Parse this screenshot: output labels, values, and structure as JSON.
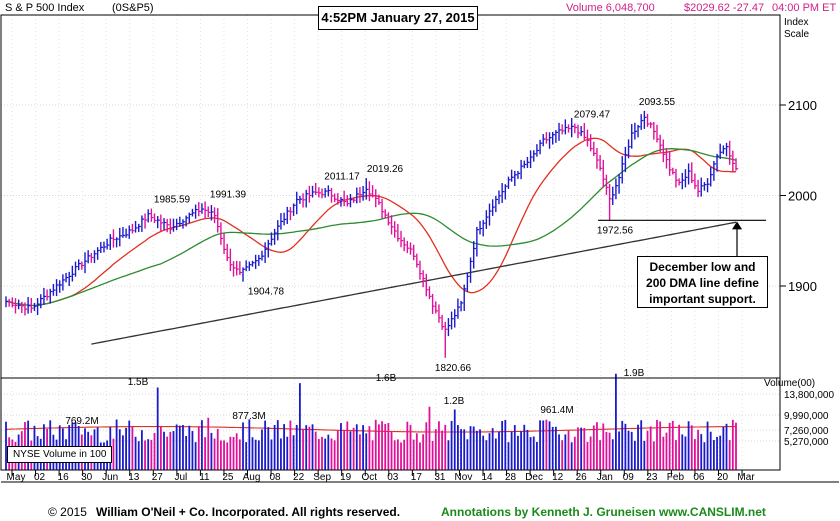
{
  "header": {
    "index_name": "S & P 500 Index",
    "symbol": "(0S&P5)",
    "timestamp": "4:52PM January 27, 2015",
    "volume": "Volume 6,048,700",
    "quote": "$2029.62 -27.47",
    "time": "04:00 PM ET",
    "scale_label_1": "Index",
    "scale_label_2": "Scale"
  },
  "callout": {
    "line1": "December low and",
    "line2": "200 DMA line define",
    "line3": "important support."
  },
  "volume_panel": {
    "legend": "NYSE Volume in 100",
    "axis_title": "Volume(00)",
    "ticks": [
      "13,800,000",
      "9,990,000",
      "7,260,000",
      "5,270,000"
    ],
    "peak_labels": [
      "769.2M",
      "1.5B",
      "877.3M",
      "1.6B",
      "1.2B",
      "961.4M",
      "1.9B"
    ]
  },
  "footer": {
    "copyright": "© 2015",
    "company": "William O'Neil + Co. Incorporated. All rights reserved.",
    "annotations": "Annotations by Kenneth J. Gruneisen www.CANSLIM.net"
  },
  "colors": {
    "up": "#1a1acc",
    "down": "#e0109a",
    "ma50": "#2e8b2e",
    "ma21": "#e03020",
    "ma200": "#333333",
    "header_pink": "#d0208a",
    "footer_green": "#1a8a1a"
  },
  "chart_data": {
    "type": "ohlc-bar",
    "title": "S & P 500 Index",
    "y_axis_ticks": [
      "2100",
      "2000",
      "1900"
    ],
    "ylim": [
      1800,
      2125
    ],
    "x_axis_ticks": [
      "May",
      "02",
      "16",
      "30",
      "Jun",
      "13",
      "27",
      "Jul",
      "11",
      "25",
      "Aug",
      "08",
      "22",
      "Sep",
      "19",
      "Oct",
      "03",
      "17",
      "31",
      "Nov",
      "14",
      "28",
      "Dec",
      "12",
      "26",
      "Jan",
      "09",
      "23",
      "Feb",
      "06",
      "20",
      "Mar"
    ],
    "price_labels": [
      "1985.59",
      "1991.39",
      "1904.78",
      "2011.17",
      "2019.26",
      "1820.66",
      "2079.47",
      "2093.55",
      "1972.56"
    ],
    "key_levels": {
      "may_start": 1883,
      "jun_high": 1985.59,
      "jul_high": 1991.39,
      "aug_low": 1904.78,
      "sep_high_1": 2011.17,
      "sep_high_2": 2019.26,
      "oct_low": 1820.66,
      "dec_high": 2079.47,
      "dec_low": 1972.56,
      "dec_late_high": 2093.55,
      "jan_27_close": 2029.62
    },
    "support_line_level": 1972.56,
    "moving_averages": [
      "21-day",
      "50-day",
      "200-day"
    ],
    "volume_unit": "hundreds of shares"
  }
}
